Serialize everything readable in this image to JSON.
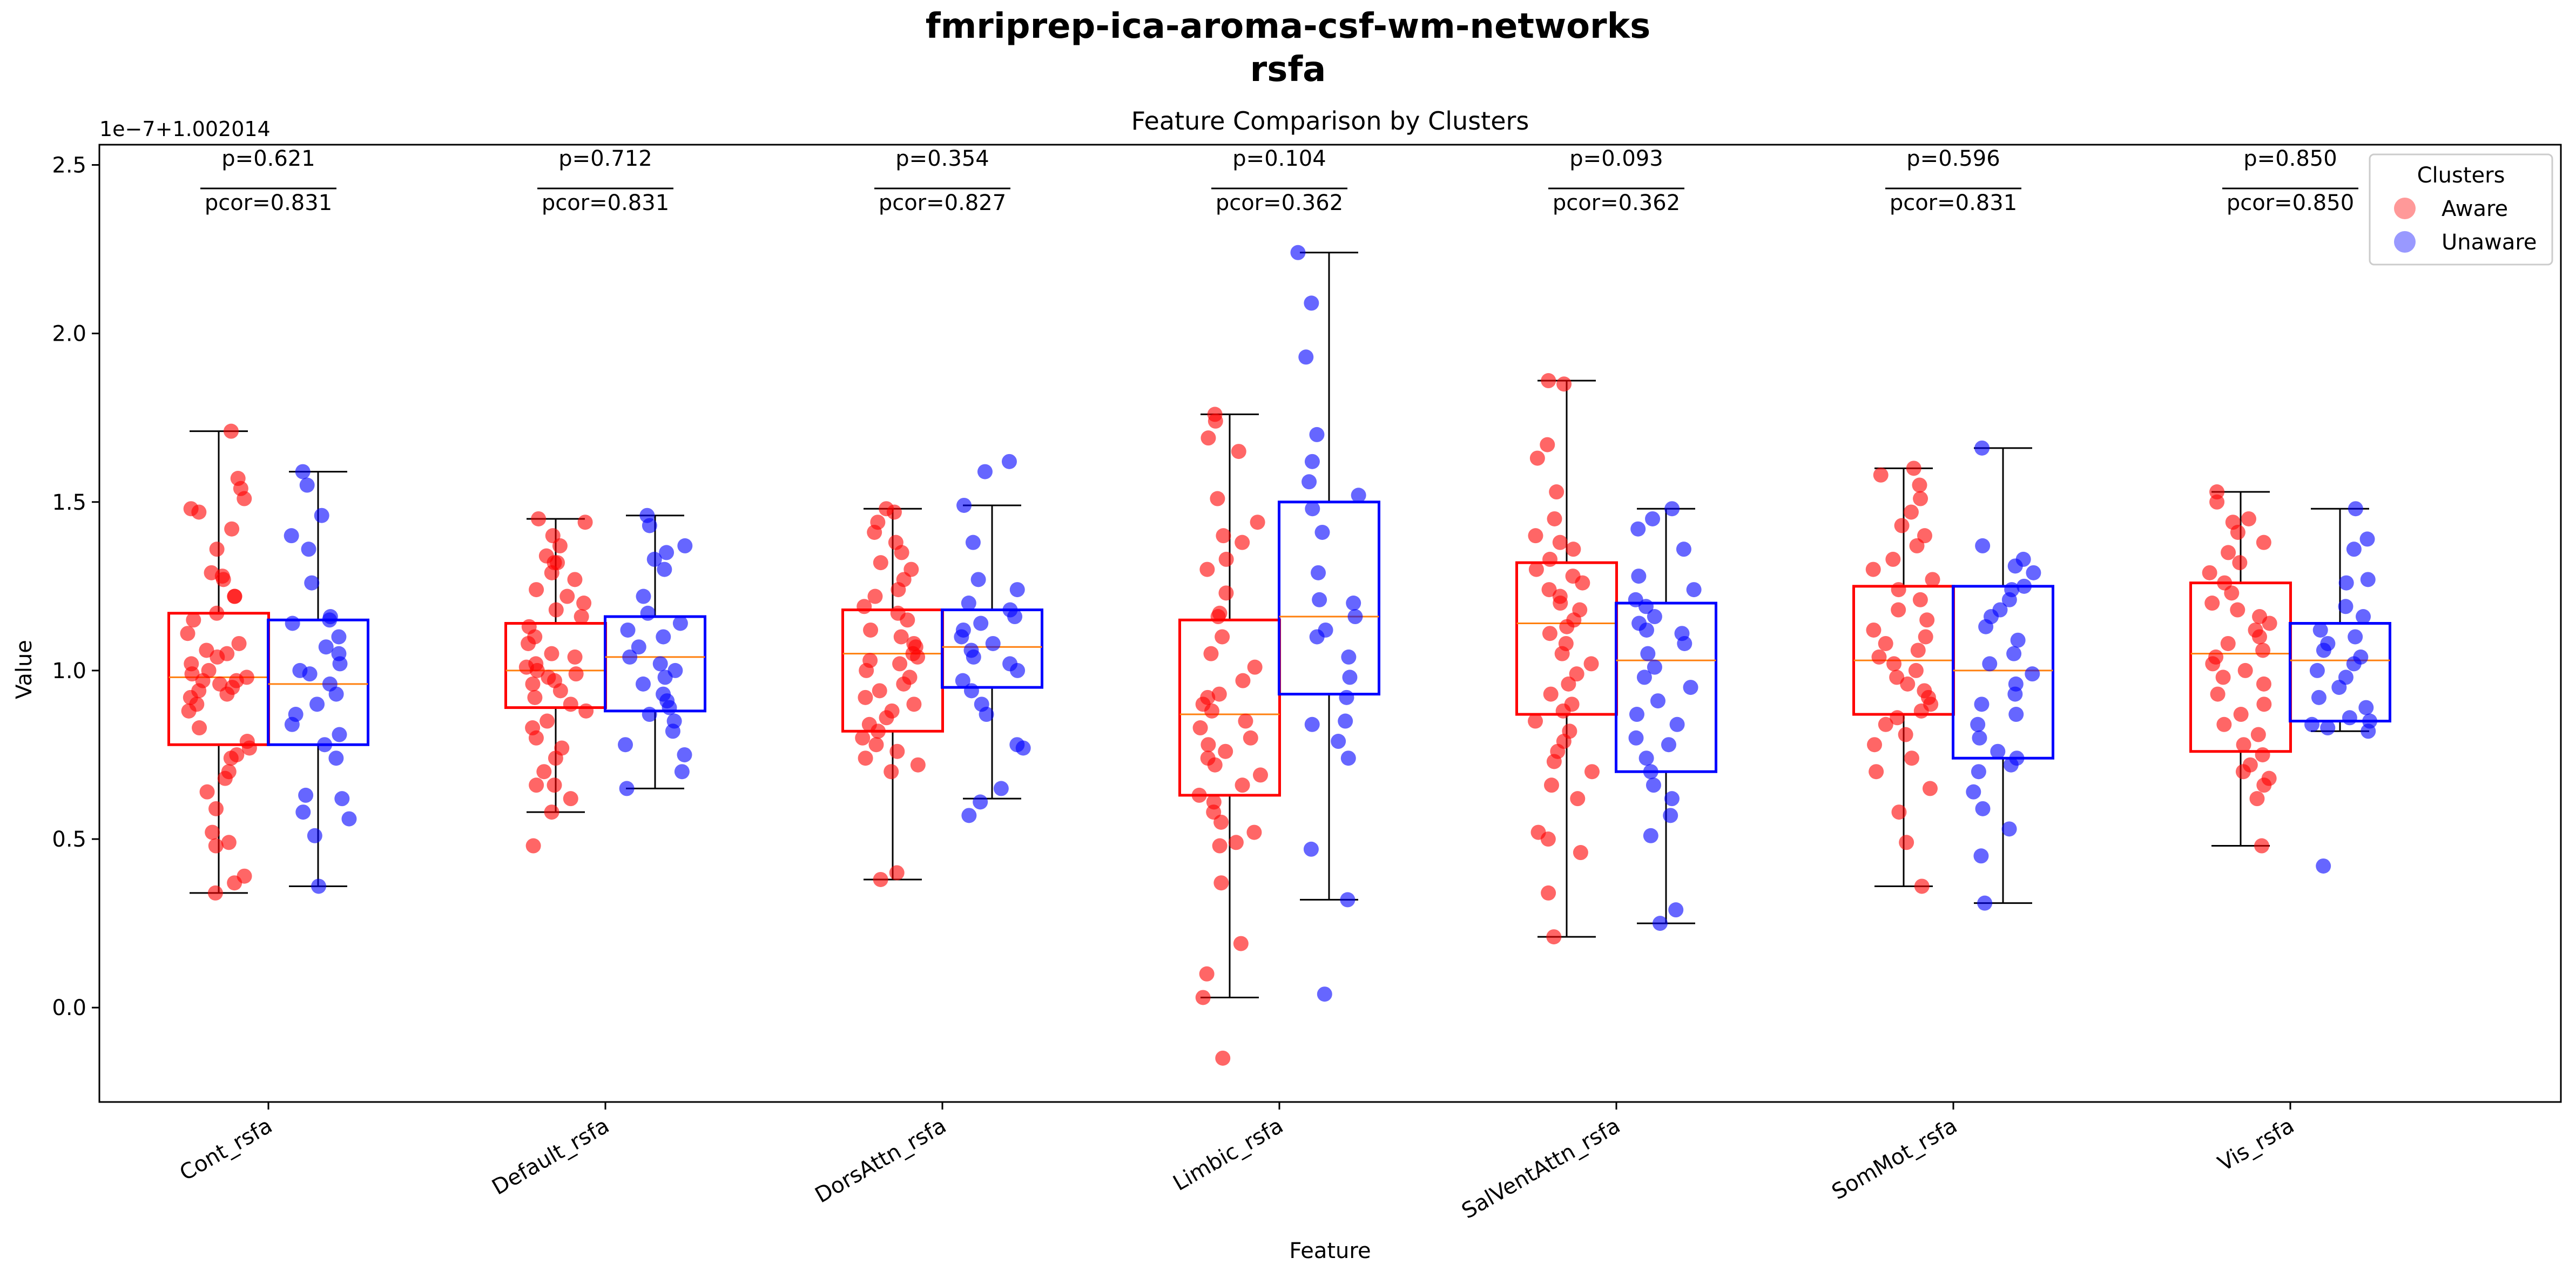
{
  "figure": {
    "suptitle_line1": "fmriprep-ica-aroma-csf-wm-networks",
    "suptitle_line2": "rsfa"
  },
  "chart_data": {
    "type": "box",
    "title": "Feature Comparison by Clusters",
    "xlabel": "Feature",
    "ylabel": "Value",
    "offset_text": "1e−7+1.002014",
    "ylim": [
      -0.28,
      2.56
    ],
    "yticks": [
      "0.0",
      "0.5",
      "1.0",
      "1.5",
      "2.0",
      "2.5"
    ],
    "ytick_values": [
      0.0,
      0.5,
      1.0,
      1.5,
      2.0,
      2.5
    ],
    "grid": false,
    "legend": {
      "title": "Clusters",
      "placement": "top-right",
      "entries": [
        "Aware",
        "Unaware"
      ]
    },
    "colors": {
      "Aware": "#ff0000",
      "Unaware": "#0000ff",
      "median": "#ff7f0e"
    },
    "categories": [
      "Cont_rsfa",
      "Default_rsfa",
      "DorsAttn_rsfa",
      "Limbic_rsfa",
      "SalVentAttn_rsfa",
      "SomMot_rsfa",
      "Vis_rsfa"
    ],
    "annotations": [
      {
        "p": "p=0.621",
        "pcor": "pcor=0.831"
      },
      {
        "p": "p=0.712",
        "pcor": "pcor=0.831"
      },
      {
        "p": "p=0.354",
        "pcor": "pcor=0.827"
      },
      {
        "p": "p=0.104",
        "pcor": "pcor=0.362"
      },
      {
        "p": "p=0.093",
        "pcor": "pcor=0.362"
      },
      {
        "p": "p=0.596",
        "pcor": "pcor=0.831"
      },
      {
        "p": "p=0.850",
        "pcor": "pcor=0.850"
      }
    ],
    "series": [
      {
        "name": "Aware",
        "boxes": [
          {
            "whislo": 0.34,
            "q1": 0.78,
            "med": 0.98,
            "q3": 1.17,
            "whishi": 1.71
          },
          {
            "whislo": 0.58,
            "q1": 0.89,
            "med": 1.0,
            "q3": 1.14,
            "whishi": 1.45
          },
          {
            "whislo": 0.38,
            "q1": 0.82,
            "med": 1.05,
            "q3": 1.18,
            "whishi": 1.48
          },
          {
            "whislo": 0.03,
            "q1": 0.63,
            "med": 0.87,
            "q3": 1.15,
            "whishi": 1.76
          },
          {
            "whislo": 0.21,
            "q1": 0.87,
            "med": 1.14,
            "q3": 1.32,
            "whishi": 1.86
          },
          {
            "whislo": 0.36,
            "q1": 0.87,
            "med": 1.03,
            "q3": 1.25,
            "whishi": 1.6
          },
          {
            "whislo": 0.48,
            "q1": 0.76,
            "med": 1.05,
            "q3": 1.26,
            "whishi": 1.53
          }
        ],
        "points": [
          [
            1.71,
            1.57,
            1.54,
            1.51,
            1.48,
            1.47,
            1.42,
            1.36,
            1.29,
            1.28,
            1.27,
            1.22,
            1.22,
            1.17,
            1.15,
            1.11,
            1.08,
            1.06,
            1.05,
            1.04,
            1.02,
            1.0,
            0.99,
            0.98,
            0.97,
            0.97,
            0.96,
            0.95,
            0.94,
            0.93,
            0.92,
            0.9,
            0.88,
            0.83,
            0.79,
            0.77,
            0.75,
            0.74,
            0.7,
            0.68,
            0.64,
            0.59,
            0.52,
            0.49,
            0.48,
            0.39,
            0.37,
            0.34
          ],
          [
            1.45,
            1.44,
            1.4,
            1.37,
            1.34,
            1.32,
            1.32,
            1.29,
            1.27,
            1.24,
            1.22,
            1.2,
            1.18,
            1.16,
            1.13,
            1.1,
            1.08,
            1.05,
            1.04,
            1.02,
            1.01,
            1.0,
            0.99,
            0.98,
            0.97,
            0.96,
            0.94,
            0.92,
            0.9,
            0.88,
            0.85,
            0.83,
            0.8,
            0.77,
            0.74,
            0.7,
            0.66,
            0.66,
            0.62,
            0.58,
            0.48
          ],
          [
            1.48,
            1.47,
            1.44,
            1.41,
            1.38,
            1.35,
            1.32,
            1.3,
            1.27,
            1.24,
            1.22,
            1.19,
            1.17,
            1.15,
            1.12,
            1.1,
            1.08,
            1.07,
            1.05,
            1.04,
            1.03,
            1.02,
            1.0,
            0.98,
            0.96,
            0.94,
            0.92,
            0.9,
            0.88,
            0.86,
            0.84,
            0.82,
            0.8,
            0.78,
            0.76,
            0.74,
            0.72,
            0.7,
            0.4,
            0.38
          ],
          [
            1.76,
            1.74,
            1.69,
            1.65,
            1.51,
            1.44,
            1.4,
            1.38,
            1.33,
            1.3,
            1.23,
            1.17,
            1.16,
            1.1,
            1.05,
            1.01,
            0.97,
            0.93,
            0.92,
            0.9,
            0.88,
            0.85,
            0.83,
            0.8,
            0.78,
            0.76,
            0.74,
            0.72,
            0.69,
            0.66,
            0.63,
            0.61,
            0.58,
            0.55,
            0.52,
            0.49,
            0.48,
            0.37,
            0.19,
            0.1,
            0.03,
            -0.15
          ],
          [
            1.86,
            1.85,
            1.67,
            1.63,
            1.53,
            1.45,
            1.4,
            1.38,
            1.36,
            1.33,
            1.3,
            1.28,
            1.26,
            1.24,
            1.22,
            1.2,
            1.18,
            1.15,
            1.13,
            1.11,
            1.08,
            1.05,
            1.02,
            0.99,
            0.96,
            0.93,
            0.9,
            0.88,
            0.85,
            0.82,
            0.79,
            0.76,
            0.73,
            0.7,
            0.66,
            0.62,
            0.52,
            0.5,
            0.46,
            0.34,
            0.21
          ],
          [
            1.6,
            1.58,
            1.55,
            1.51,
            1.47,
            1.43,
            1.4,
            1.37,
            1.33,
            1.3,
            1.27,
            1.24,
            1.21,
            1.18,
            1.15,
            1.12,
            1.1,
            1.08,
            1.06,
            1.04,
            1.02,
            1.0,
            0.98,
            0.96,
            0.94,
            0.92,
            0.9,
            0.88,
            0.86,
            0.84,
            0.81,
            0.78,
            0.74,
            0.7,
            0.65,
            0.58,
            0.49,
            0.36
          ],
          [
            1.53,
            1.5,
            1.45,
            1.44,
            1.41,
            1.38,
            1.35,
            1.32,
            1.29,
            1.26,
            1.23,
            1.2,
            1.18,
            1.16,
            1.14,
            1.12,
            1.1,
            1.08,
            1.06,
            1.04,
            1.02,
            1.0,
            0.98,
            0.96,
            0.93,
            0.9,
            0.87,
            0.84,
            0.81,
            0.78,
            0.75,
            0.72,
            0.7,
            0.68,
            0.66,
            0.62,
            0.48
          ]
        ]
      },
      {
        "name": "Unaware",
        "boxes": [
          {
            "whislo": 0.36,
            "q1": 0.78,
            "med": 0.96,
            "q3": 1.15,
            "whishi": 1.59
          },
          {
            "whislo": 0.65,
            "q1": 0.88,
            "med": 1.04,
            "q3": 1.16,
            "whishi": 1.46
          },
          {
            "whislo": 0.62,
            "q1": 0.95,
            "med": 1.07,
            "q3": 1.18,
            "whishi": 1.49
          },
          {
            "whislo": 0.32,
            "q1": 0.93,
            "med": 1.16,
            "q3": 1.5,
            "whishi": 2.24
          },
          {
            "whislo": 0.25,
            "q1": 0.7,
            "med": 1.03,
            "q3": 1.2,
            "whishi": 1.48
          },
          {
            "whislo": 0.31,
            "q1": 0.74,
            "med": 1.0,
            "q3": 1.25,
            "whishi": 1.66
          },
          {
            "whislo": 0.82,
            "q1": 0.85,
            "med": 1.03,
            "q3": 1.14,
            "whishi": 1.48
          }
        ],
        "points": [
          [
            1.59,
            1.55,
            1.46,
            1.4,
            1.36,
            1.26,
            1.16,
            1.15,
            1.14,
            1.1,
            1.07,
            1.05,
            1.02,
            1.0,
            0.99,
            0.96,
            0.93,
            0.9,
            0.87,
            0.84,
            0.81,
            0.78,
            0.74,
            0.63,
            0.62,
            0.58,
            0.56,
            0.51,
            0.36
          ],
          [
            1.46,
            1.43,
            1.37,
            1.35,
            1.33,
            1.3,
            1.22,
            1.17,
            1.14,
            1.12,
            1.1,
            1.07,
            1.04,
            1.02,
            1.0,
            0.98,
            0.96,
            0.93,
            0.91,
            0.89,
            0.87,
            0.85,
            0.82,
            0.78,
            0.75,
            0.7,
            0.65
          ],
          [
            1.62,
            1.59,
            1.49,
            1.38,
            1.27,
            1.24,
            1.2,
            1.18,
            1.16,
            1.14,
            1.12,
            1.1,
            1.08,
            1.06,
            1.04,
            1.02,
            1.0,
            0.97,
            0.94,
            0.9,
            0.87,
            0.78,
            0.77,
            0.65,
            0.61,
            0.57
          ],
          [
            2.24,
            2.09,
            1.93,
            1.7,
            1.62,
            1.56,
            1.52,
            1.48,
            1.41,
            1.29,
            1.21,
            1.2,
            1.16,
            1.12,
            1.1,
            1.04,
            0.98,
            0.92,
            0.85,
            0.84,
            0.79,
            0.74,
            0.47,
            0.32,
            0.04
          ],
          [
            1.48,
            1.45,
            1.42,
            1.36,
            1.28,
            1.24,
            1.21,
            1.19,
            1.16,
            1.14,
            1.12,
            1.11,
            1.08,
            1.05,
            1.01,
            0.98,
            0.95,
            0.91,
            0.87,
            0.84,
            0.8,
            0.78,
            0.74,
            0.7,
            0.66,
            0.62,
            0.57,
            0.51,
            0.29,
            0.25
          ],
          [
            1.66,
            1.37,
            1.33,
            1.31,
            1.29,
            1.25,
            1.24,
            1.21,
            1.18,
            1.16,
            1.13,
            1.09,
            1.05,
            1.02,
            0.99,
            0.96,
            0.93,
            0.9,
            0.87,
            0.84,
            0.8,
            0.76,
            0.74,
            0.72,
            0.7,
            0.64,
            0.59,
            0.53,
            0.45,
            0.31
          ],
          [
            1.48,
            1.39,
            1.36,
            1.27,
            1.26,
            1.19,
            1.16,
            1.12,
            1.1,
            1.08,
            1.06,
            1.04,
            1.02,
            1.0,
            0.98,
            0.95,
            0.92,
            0.89,
            0.86,
            0.85,
            0.84,
            0.83,
            0.82,
            0.42
          ]
        ]
      }
    ]
  }
}
